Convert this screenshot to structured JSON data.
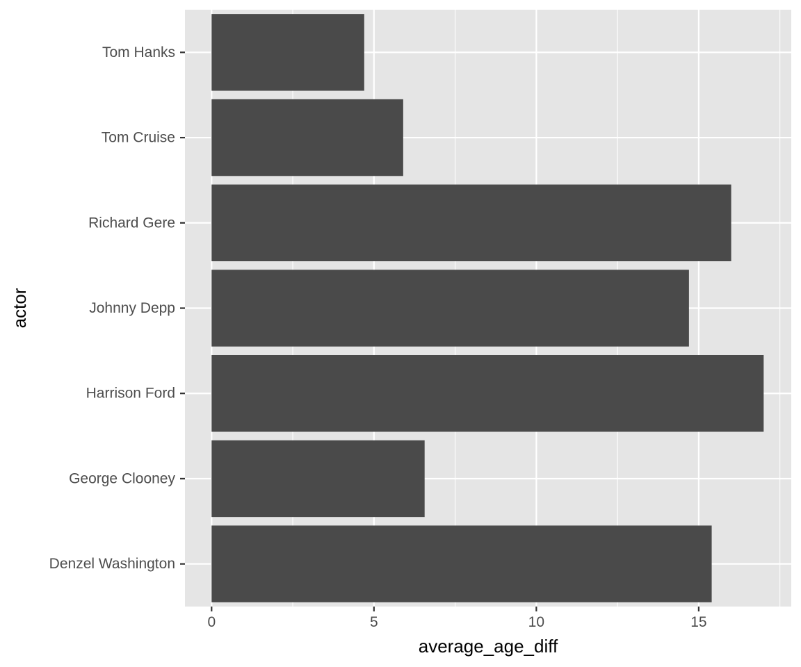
{
  "chart_data": {
    "type": "bar",
    "orientation": "horizontal",
    "categories": [
      "Denzel Washington",
      "George Clooney",
      "Harrison Ford",
      "Johnny Depp",
      "Richard Gere",
      "Tom Cruise",
      "Tom Hanks"
    ],
    "values": [
      15.4,
      6.56,
      17.0,
      14.7,
      16.0,
      5.9,
      4.7
    ],
    "xlabel": "average_age_diff",
    "ylabel": "actor",
    "xlim": [
      -0.82,
      17.85
    ],
    "xticks": [
      0,
      5,
      10,
      15
    ],
    "xtick_labels": [
      "0",
      "5",
      "10",
      "15"
    ],
    "grid": true,
    "colors": {
      "panel": "#e5e5e5",
      "grid_major": "#ffffff",
      "bar": "#4a4a4a",
      "tick": "#333333",
      "tick_text": "#4d4d4d"
    }
  }
}
